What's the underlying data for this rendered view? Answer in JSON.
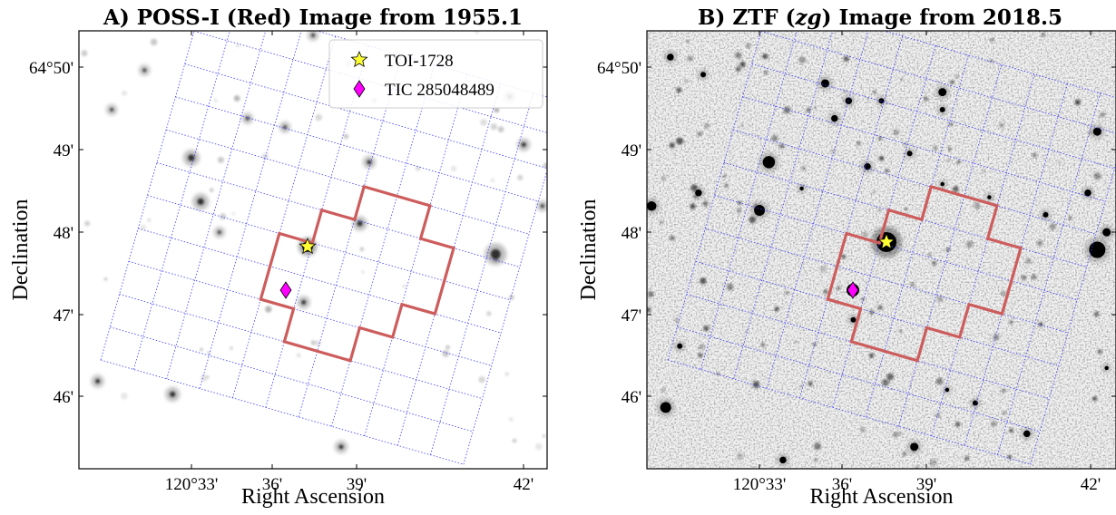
{
  "chart_data": [
    {
      "type": "scatter",
      "title": "A) POSS-I (Red) Image from 1955.1",
      "xlabel": "Right Ascension",
      "ylabel": "Declination",
      "xticks": [
        "120°33'",
        "36'",
        "39'",
        "42'"
      ],
      "yticks": [
        "64°50'",
        "49'",
        "48'",
        "47'",
        "46'"
      ],
      "background": "survey sky image, sparse stars",
      "grid": "TESS pixel grid (blue dotted), rotated",
      "aperture_color": "#cd5c5c",
      "legend_position": "top-right",
      "series": [
        {
          "name": "TOI-1728",
          "marker": "star",
          "color": "#ffff33",
          "x_arcmin_ra": 36.5,
          "y_arcmin_dec": 47.82
        },
        {
          "name": "TIC 285048489",
          "marker": "diamond",
          "color": "#ff00ff",
          "x_arcmin_ra": 35.8,
          "y_arcmin_dec": 47.3
        }
      ]
    },
    {
      "type": "scatter",
      "title": "B) ZTF (zg) Image from 2018.5",
      "title_plain": "B) ZTF (",
      "title_italic": "zg",
      "title_rest": ") Image from 2018.5",
      "xlabel": "Right Ascension",
      "ylabel": "Declination",
      "xticks": [
        "120°33'",
        "36'",
        "39'",
        "42'"
      ],
      "yticks": [
        "64°50'",
        "49'",
        "48'",
        "47'",
        "46'"
      ],
      "background": "survey sky image, noisy with many stars",
      "grid": "TESS pixel grid (blue dotted), rotated",
      "aperture_color": "#cd5c5c",
      "series": [
        {
          "name": "TOI-1728",
          "marker": "star",
          "color": "#ffff33",
          "x_arcmin_ra": 37.0,
          "y_arcmin_dec": 47.88
        },
        {
          "name": "TIC 285048489",
          "marker": "diamond",
          "color": "#ff00ff",
          "x_arcmin_ra": 35.7,
          "y_arcmin_dec": 47.28
        }
      ]
    }
  ]
}
